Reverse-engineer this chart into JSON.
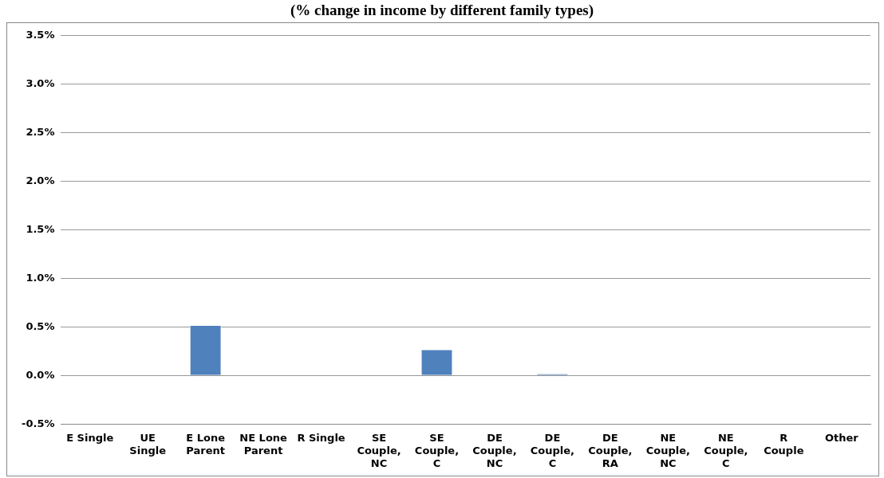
{
  "chart_data": {
    "type": "bar",
    "title": "(% change in income by different family types)",
    "categories": [
      "E Single",
      "UE Single",
      "E Lone Parent",
      "NE Lone Parent",
      "R Single",
      "SE Couple, NC",
      "SE Couple, C",
      "DE Couple, NC",
      "DE Couple, C",
      "DE Couple, RA",
      "NE Couple, NC",
      "NE Couple, C",
      "R Couple",
      "Other"
    ],
    "values": [
      0,
      0,
      0.52,
      0,
      0,
      0,
      0.27,
      0,
      0.02,
      0,
      0,
      0,
      0,
      0
    ],
    "color": "#4f81bd",
    "ylim": [
      -0.5,
      3.5
    ],
    "yticks": [
      {
        "value": -0.5,
        "label": "-0.5%"
      },
      {
        "value": 0,
        "label": "0.0%"
      },
      {
        "value": 0.5,
        "label": "0.5%"
      },
      {
        "value": 1,
        "label": "1.0%"
      },
      {
        "value": 1.5,
        "label": "1.5%"
      },
      {
        "value": 2,
        "label": "2.0%"
      },
      {
        "value": 2.5,
        "label": "2.5%"
      },
      {
        "value": 3,
        "label": "3.0%"
      },
      {
        "value": 3.5,
        "label": "3.5%"
      }
    ],
    "grid": "y",
    "legend": false
  }
}
